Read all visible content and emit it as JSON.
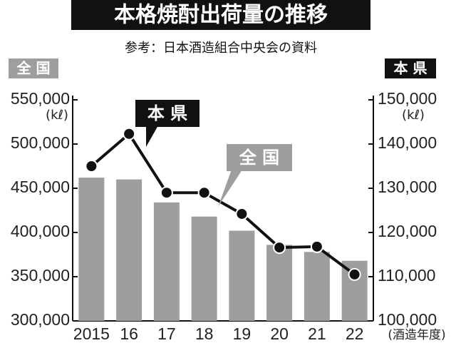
{
  "chart_data": {
    "type": "bar-line",
    "title": "本格焼酎出荷量の推移",
    "subtitle": "参考：日本酒造組合中央会の資料",
    "y_label": "全 国",
    "y2_label": "本 県",
    "y_unit": "(kℓ)",
    "y2_unit": "(kℓ)",
    "x_unit": "(酒造年度)",
    "categories": [
      "2015",
      "16",
      "17",
      "18",
      "19",
      "20",
      "21",
      "22"
    ],
    "series": [
      {
        "name": "全 国",
        "type": "bar",
        "color": "#9e9e9e",
        "values": [
          462000,
          460000,
          434000,
          418000,
          402000,
          386000,
          378000,
          368000
        ]
      },
      {
        "name": "本 県",
        "type": "line",
        "axis": "y2",
        "color": "#111111",
        "values": [
          135000,
          142300,
          129000,
          129000,
          124200,
          116600,
          116800,
          110500
        ]
      }
    ],
    "ylim": [
      300000,
      550000
    ],
    "yticks": [
      {
        "value": 300000,
        "label": "300,000"
      },
      {
        "value": 350000,
        "label": "350,000"
      },
      {
        "value": 400000,
        "label": "400,000"
      },
      {
        "value": 450000,
        "label": "450,000"
      },
      {
        "value": 500000,
        "label": "500,000"
      },
      {
        "value": 550000,
        "label": "550,000"
      }
    ],
    "y2lim": [
      100000,
      150000
    ],
    "y2ticks": [
      {
        "value": 100000,
        "label": "100,000"
      },
      {
        "value": 110000,
        "label": "110,000"
      },
      {
        "value": 120000,
        "label": "120,000"
      },
      {
        "value": 130000,
        "label": "130,000"
      },
      {
        "value": 140000,
        "label": "140,000"
      },
      {
        "value": 150000,
        "label": "150,000"
      }
    ],
    "grid": false
  }
}
